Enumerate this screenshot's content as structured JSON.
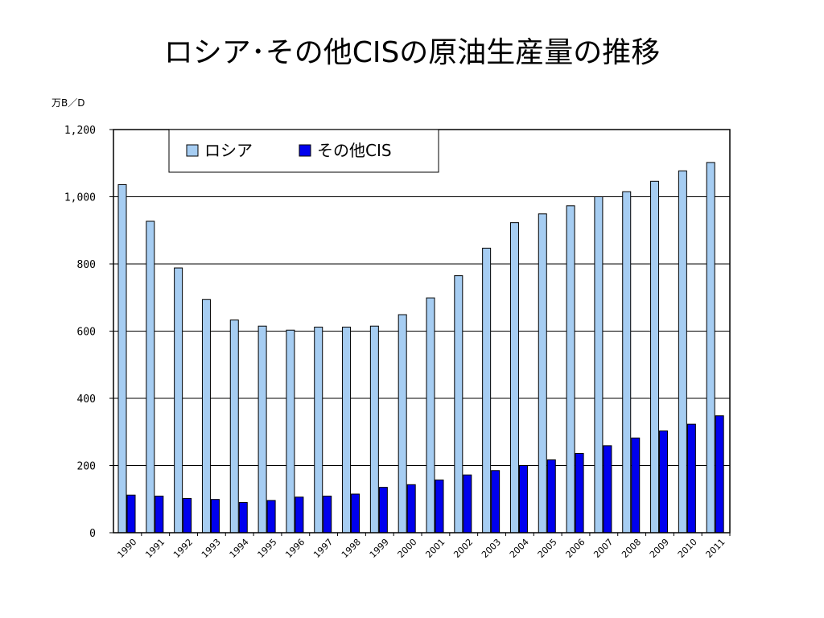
{
  "chart_data": {
    "type": "bar",
    "title": "ロシア･その他CISの原油生産量の推移",
    "ylabel": "万B／D",
    "xlabel": "",
    "ylim": [
      0,
      1200
    ],
    "yticks": [
      "0",
      "200",
      "400",
      "600",
      "800",
      "1,000",
      "1,200"
    ],
    "categories": [
      "1990",
      "1991",
      "1992",
      "1993",
      "1994",
      "1995",
      "1996",
      "1997",
      "1998",
      "1999",
      "2000",
      "2001",
      "2002",
      "2003",
      "2004",
      "2005",
      "2006",
      "2007",
      "2008",
      "2009",
      "2010",
      "2011"
    ],
    "series": [
      {
        "name": "ロシア",
        "color": "#a6cdf2",
        "values": [
          1036,
          927,
          788,
          694,
          633,
          615,
          603,
          612,
          612,
          615,
          649,
          699,
          765,
          847,
          923,
          949,
          973,
          1000,
          1015,
          1046,
          1077,
          1102
        ]
      },
      {
        "name": "その他CIS",
        "color": "#0000ee",
        "values": [
          112,
          109,
          102,
          99,
          90,
          96,
          106,
          109,
          115,
          135,
          143,
          157,
          172,
          185,
          200,
          217,
          236,
          259,
          282,
          303,
          323,
          348
        ]
      }
    ],
    "grid": true,
    "legend_position": "top-left"
  }
}
